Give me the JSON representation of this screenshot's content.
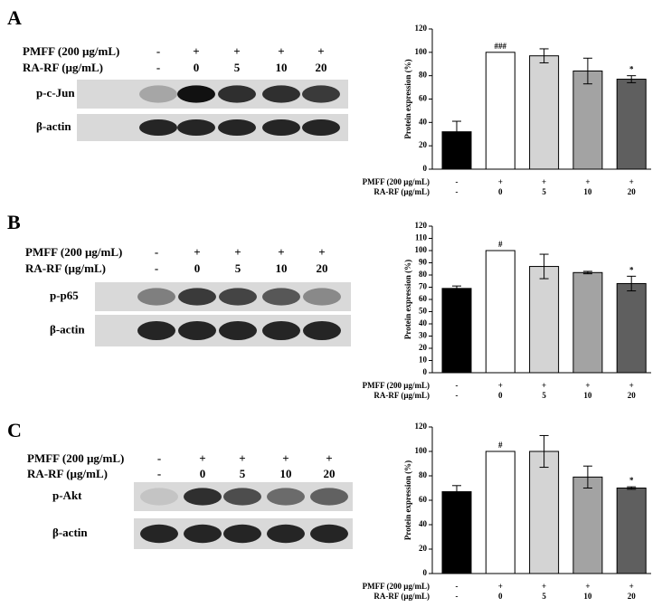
{
  "panels": [
    {
      "letter": "A",
      "rows": [
        {
          "name": "PMFF (200 µg/mL)",
          "labels": [
            "-",
            "+",
            "+",
            "+",
            "+"
          ]
        },
        {
          "name": "RA-RF (µg/mL)",
          "labels": [
            "-",
            "0",
            "5",
            "10",
            "20"
          ]
        }
      ],
      "blots": [
        "p-c-Jun",
        "β-actin"
      ]
    },
    {
      "letter": "B",
      "rows": [
        {
          "name": "PMFF (200 µg/mL)",
          "labels": [
            "-",
            "+",
            "+",
            "+",
            "+"
          ]
        },
        {
          "name": "RA-RF (µg/mL)",
          "labels": [
            "-",
            "0",
            "5",
            "10",
            "20"
          ]
        }
      ],
      "blots": [
        "p-p65",
        "β-actin"
      ]
    },
    {
      "letter": "C",
      "rows": [
        {
          "name": "PMFF  (200 µg/mL)",
          "labels": [
            "-",
            "+",
            "+",
            "+",
            "+"
          ]
        },
        {
          "name": "RA-RF (µg/mL)",
          "labels": [
            "-",
            "0",
            "5",
            "10",
            "20"
          ]
        }
      ],
      "blots": [
        "p-Akt",
        "β-actin"
      ]
    }
  ],
  "chart_data": [
    {
      "type": "bar",
      "y_label": "Protein expression (%)",
      "x_label_rows": [
        {
          "name": "PMFF (200 µg/mL)",
          "labels": [
            "-",
            "+",
            "+",
            "+",
            "+"
          ]
        },
        {
          "name": "RA-RF (µg/mL)",
          "labels": [
            "-",
            "0",
            "5",
            "10",
            "20"
          ]
        }
      ],
      "values": [
        32,
        100,
        97,
        84,
        77
      ],
      "errors": [
        9,
        0,
        6,
        11,
        3
      ],
      "annotations": [
        null,
        "###",
        null,
        null,
        "*"
      ],
      "colors": [
        "#000000",
        "#ffffff",
        "#d4d4d4",
        "#a3a3a3",
        "#5f5f5f"
      ],
      "ylim": [
        0,
        120
      ],
      "yticks": [
        0,
        20,
        40,
        60,
        80,
        100,
        120
      ]
    },
    {
      "type": "bar",
      "y_label": "Protein expression (%)",
      "x_label_rows": [
        {
          "name": "PMFF (200 µg/mL)",
          "labels": [
            "-",
            "+",
            "+",
            "+",
            "+"
          ]
        },
        {
          "name": "RA-RF (µg/mL)",
          "labels": [
            "-",
            "0",
            "5",
            "10",
            "20"
          ]
        }
      ],
      "values": [
        69,
        100,
        87,
        82,
        73
      ],
      "errors": [
        2,
        0,
        10,
        1,
        6
      ],
      "annotations": [
        null,
        "#",
        null,
        null,
        "*"
      ],
      "colors": [
        "#000000",
        "#ffffff",
        "#d4d4d4",
        "#a3a3a3",
        "#5f5f5f"
      ],
      "ylim": [
        0,
        120
      ],
      "yticks": [
        0,
        10,
        20,
        30,
        40,
        50,
        60,
        70,
        80,
        90,
        100,
        110,
        120
      ]
    },
    {
      "type": "bar",
      "y_label": "Protein expression (%)",
      "x_label_rows": [
        {
          "name": "PMFF (200 µg/mL)",
          "labels": [
            "-",
            "+",
            "+",
            "+",
            "+"
          ]
        },
        {
          "name": "RA-RF (µg/mL)",
          "labels": [
            "-",
            "0",
            "5",
            "10",
            "20"
          ]
        }
      ],
      "values": [
        67,
        100,
        100,
        79,
        70
      ],
      "errors": [
        5,
        0,
        13,
        9,
        1
      ],
      "annotations": [
        null,
        "#",
        null,
        null,
        "*"
      ],
      "colors": [
        "#000000",
        "#ffffff",
        "#d4d4d4",
        "#a3a3a3",
        "#5f5f5f"
      ],
      "ylim": [
        0,
        120
      ],
      "yticks": [
        0,
        20,
        40,
        60,
        80,
        100,
        120
      ]
    }
  ]
}
